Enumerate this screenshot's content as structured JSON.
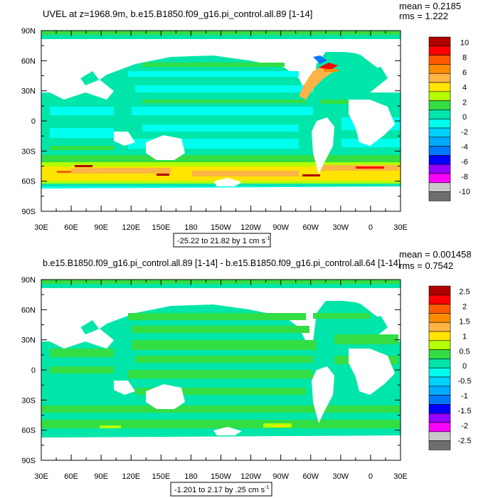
{
  "panels": [
    {
      "title": "UVEL at z=1968.9m, b.e15.B1850.f09_g16.pi_control.all.89 [1-14]",
      "mean_text": "mean = 0.2185",
      "rms_text": "rms = 1.222",
      "range_text": "-25.22 to 21.82 by 1 cm s",
      "range_unit_exp": "-1",
      "colorbar_labels": [
        "10",
        "8",
        "6",
        "4",
        "2",
        "0",
        "-2",
        "-4",
        "-6",
        "-8",
        "-10"
      ]
    },
    {
      "title": "b.e15.B1850.f09_g16.pi_control.all.89 [1-14] - b.e15.B1850.f09_g16.pi_control.all.64 [1-14]",
      "mean_text": "mean = 0.001458",
      "rms_text": "rms = 0.7542",
      "range_text": "-1.201 to 2.17 by .25 cm s",
      "range_unit_exp": "-1",
      "colorbar_labels": [
        "2.5",
        "2",
        "1.5",
        "1",
        "0.5",
        "0",
        "-0.5",
        "-1",
        "-1.5",
        "-2",
        "-2.5"
      ]
    }
  ],
  "lat_labels": [
    "90N",
    "60N",
    "30N",
    "0",
    "30S",
    "60S",
    "90S"
  ],
  "lon_labels": [
    "30E",
    "60E",
    "90E",
    "120E",
    "150E",
    "180",
    "150W",
    "120W",
    "90W",
    "60W",
    "30W",
    "0",
    "30E"
  ],
  "colorbar_colors": [
    "#b00000",
    "#ff0000",
    "#ff5a00",
    "#ff8c00",
    "#ffb446",
    "#ffe400",
    "#b4ff00",
    "#33dd44",
    "#00e6aa",
    "#00ffee",
    "#00d2ff",
    "#00aaff",
    "#0078ff",
    "#0000ff",
    "#9600ff",
    "#ff00ff",
    "#c8c8c8",
    "#6e6e6e"
  ]
}
